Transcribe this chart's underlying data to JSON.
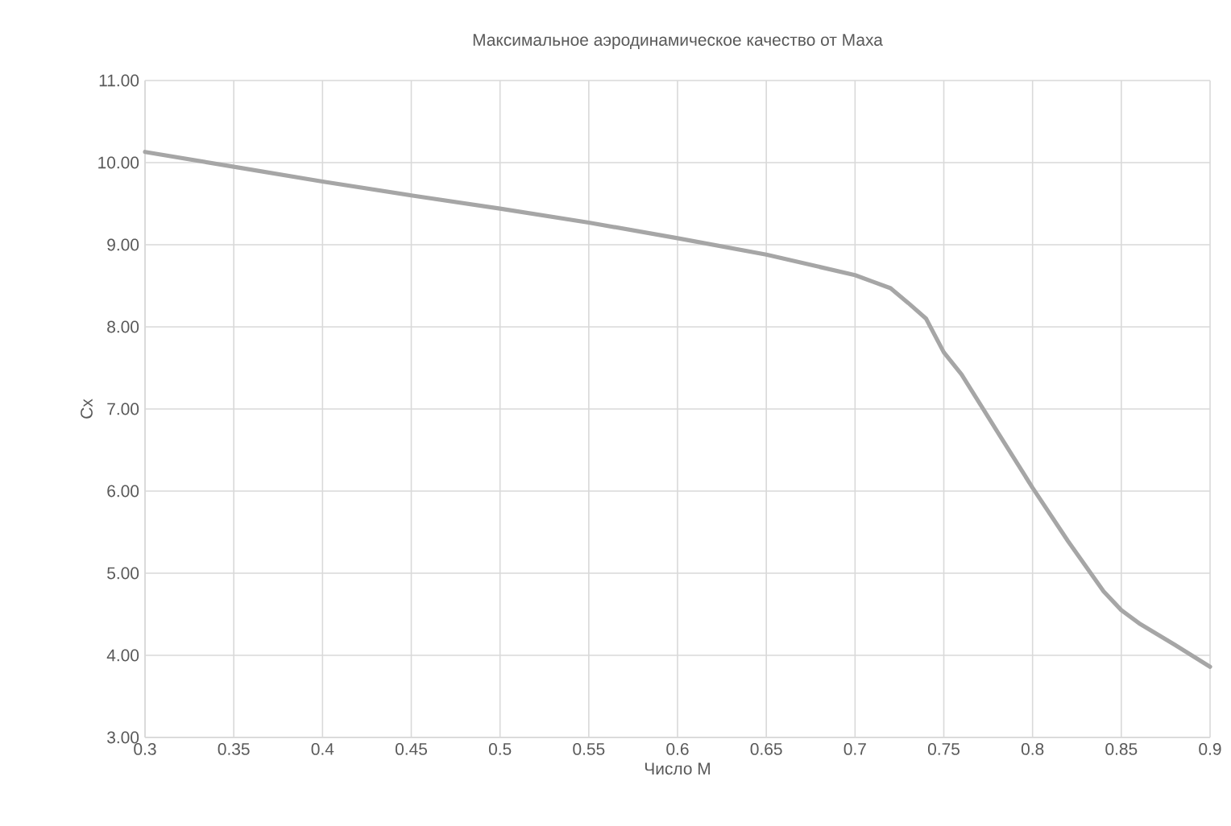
{
  "chart_data": {
    "type": "line",
    "title": "Максимальное аэродинамическое качество от Маха",
    "xlabel": "Число M",
    "ylabel": "Cx",
    "x": [
      0.3,
      0.35,
      0.4,
      0.45,
      0.5,
      0.55,
      0.6,
      0.65,
      0.7,
      0.71,
      0.72,
      0.73,
      0.74,
      0.75,
      0.76,
      0.78,
      0.8,
      0.82,
      0.84,
      0.85,
      0.86,
      0.88,
      0.9
    ],
    "series": [
      {
        "color": "#a6a6a6",
        "values": [
          10.13,
          9.95,
          9.77,
          9.6,
          9.44,
          9.27,
          9.08,
          8.88,
          8.63,
          8.55,
          8.47,
          8.29,
          8.1,
          7.69,
          7.42,
          6.73,
          6.04,
          5.39,
          4.78,
          4.55,
          4.39,
          4.13,
          3.86
        ]
      }
    ],
    "xlim": [
      0.3,
      0.9
    ],
    "ylim": [
      3,
      11
    ],
    "xticks": [
      0.3,
      0.35,
      0.4,
      0.45,
      0.5,
      0.55,
      0.6,
      0.65,
      0.7,
      0.75,
      0.8,
      0.85,
      0.9
    ],
    "yticks": [
      {
        "value": 3,
        "label": "3.00"
      },
      {
        "value": 4,
        "label": "4.00"
      },
      {
        "value": 5,
        "label": "5.00"
      },
      {
        "value": 6,
        "label": "6.00"
      },
      {
        "value": 7,
        "label": "7.00"
      },
      {
        "value": 8,
        "label": "8.00"
      },
      {
        "value": 9,
        "label": "9.00"
      },
      {
        "value": 10,
        "label": "10.00"
      },
      {
        "value": 11,
        "label": "11.00"
      }
    ],
    "grid": true,
    "legend": false,
    "marker": "none",
    "line_style": "solid"
  }
}
